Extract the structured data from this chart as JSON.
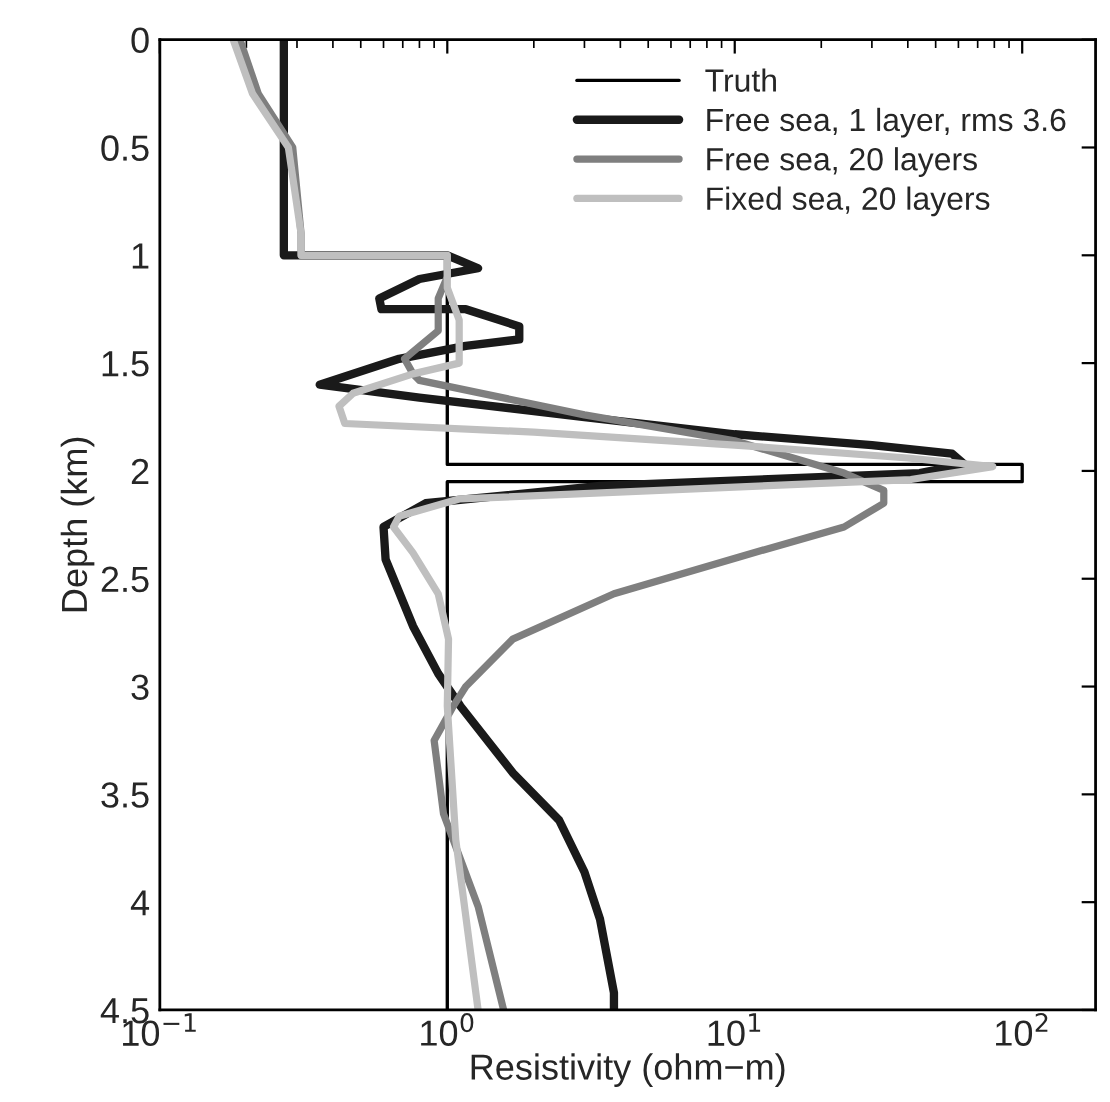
{
  "chart_data": {
    "type": "line",
    "xlabel": "Resistivity (ohm−m)",
    "ylabel": "Depth (km)",
    "log": "x",
    "xlim": [
      0.1,
      180
    ],
    "xticks": [
      {
        "value": 0.1,
        "label": "10$^{−1}$"
      },
      {
        "value": 1,
        "label": "10$^{0}$"
      },
      {
        "value": 10,
        "label": "10$^{1}$"
      },
      {
        "value": 100,
        "label": "10$^{2}$"
      }
    ],
    "ylim": [
      4.5,
      0
    ],
    "yticks": [
      0,
      0.5,
      1,
      1.5,
      2,
      2.5,
      3,
      3.5,
      4,
      4.5
    ],
    "grid": false,
    "legend": "top right",
    "line_style": "solid",
    "marker": "none",
    "series": [
      {
        "name": "Truth",
        "color": "#000000",
        "x": [
          0.27,
          0.27,
          1.0,
          1.0,
          100,
          100,
          1.0,
          1.0
        ],
        "values": [
          0,
          1.0,
          1.0,
          1.97,
          1.97,
          2.05,
          2.05,
          4.5
        ]
      },
      {
        "name": "Free sea, 1 layer, rms 3.6",
        "color": "#1a1a1a",
        "x": [
          0.27,
          0.27,
          1.0,
          1.28,
          0.8,
          0.58,
          0.59,
          1.16,
          1.78,
          1.78,
          1.16,
          0.68,
          0.36,
          0.8,
          3.0,
          10,
          30,
          57,
          63,
          44,
          3.4,
          0.84,
          0.6,
          0.61,
          0.76,
          0.93,
          1.11,
          1.69,
          2.45,
          3.0,
          3.4,
          3.8,
          3.8
        ],
        "values": [
          0,
          1.0,
          1.0,
          1.06,
          1.11,
          1.2,
          1.25,
          1.25,
          1.33,
          1.39,
          1.42,
          1.48,
          1.6,
          1.66,
          1.75,
          1.83,
          1.88,
          1.92,
          1.97,
          2.01,
          2.07,
          2.15,
          2.26,
          2.41,
          2.72,
          2.94,
          3.09,
          3.4,
          3.62,
          3.86,
          4.08,
          4.42,
          4.5
        ]
      },
      {
        "name": "Free sea, 20 layers",
        "color": "#7f7f7f",
        "x": [
          0.19,
          0.22,
          0.29,
          0.31,
          0.31,
          1.0,
          1.0,
          0.93,
          0.93,
          0.71,
          0.76,
          0.8,
          3.0,
          10,
          24,
          33,
          33,
          24,
          10.3,
          3.8,
          1.69,
          1.16,
          1.05,
          0.9,
          0.97,
          1.28,
          1.57
        ],
        "values": [
          0,
          0.25,
          0.5,
          0.9,
          1.0,
          1.0,
          1.1,
          1.2,
          1.35,
          1.48,
          1.55,
          1.58,
          1.74,
          1.86,
          2.01,
          2.09,
          2.15,
          2.26,
          2.4,
          2.57,
          2.78,
          3.0,
          3.09,
          3.25,
          3.59,
          4.02,
          4.5
        ]
      },
      {
        "name": "Fixed sea, 20 layers",
        "color": "#bfbfbf",
        "x": [
          0.18,
          0.21,
          0.28,
          0.31,
          0.31,
          1.0,
          1.0,
          1.1,
          1.1,
          0.76,
          0.47,
          0.42,
          0.44,
          2.0,
          10,
          40,
          79,
          41,
          1.1,
          0.68,
          0.65,
          0.76,
          0.93,
          1.01,
          1.0,
          1.07,
          1.28
        ],
        "values": [
          0,
          0.25,
          0.5,
          0.9,
          1.0,
          1.0,
          1.15,
          1.3,
          1.5,
          1.55,
          1.64,
          1.7,
          1.78,
          1.82,
          1.88,
          1.94,
          1.98,
          2.04,
          2.13,
          2.21,
          2.26,
          2.38,
          2.57,
          2.78,
          3.09,
          3.71,
          4.5
        ]
      }
    ]
  }
}
